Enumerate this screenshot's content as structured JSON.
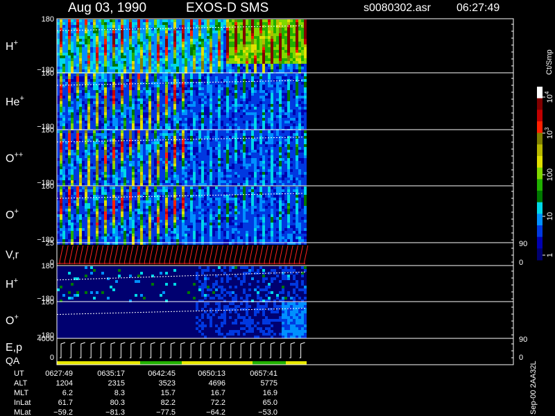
{
  "header": {
    "date": "Aug 03, 1990",
    "instrument": "EXOS-D SMS",
    "file": "s0080302.asr",
    "time": "06:27:49"
  },
  "panels": [
    {
      "label": "H",
      "sup": "+",
      "top": "180",
      "bottom": "−180"
    },
    {
      "label": "He",
      "sup": "+",
      "top": "180",
      "bottom": "−180"
    },
    {
      "label": "O",
      "sup": "++",
      "top": "180",
      "bottom": "−180"
    },
    {
      "label": "O",
      "sup": "+",
      "top": "180",
      "bottom": "−180"
    },
    {
      "label": "V,r",
      "top": "25",
      "bottom": "0",
      "right_top": "90",
      "right_bottom": "0"
    },
    {
      "label": "H",
      "sup": "+",
      "top": "180",
      "bottom": "−180"
    },
    {
      "label": "O",
      "sup": "+",
      "top": "180",
      "bottom": "−180"
    },
    {
      "label": "E,p",
      "top": "4000",
      "bottom": "0",
      "right_top": "90",
      "right_bottom": "0"
    }
  ],
  "qa_label": "QA",
  "colorbar": {
    "title": "Ct/Smp",
    "labels": [
      {
        "text": "10",
        "sup": "4"
      },
      {
        "text": "10",
        "sup": "3"
      },
      {
        "text": "100"
      },
      {
        "text": "10"
      },
      {
        "text": "1"
      }
    ]
  },
  "table": {
    "rows": [
      [
        "UT",
        "0627:49",
        "0635:17",
        "0642:45",
        "0650:13",
        "0657:41"
      ],
      [
        "ALT",
        "1204",
        "2315",
        "3523",
        "4696",
        "5775"
      ],
      [
        "MLT",
        "6.2",
        "8.3",
        "15.7",
        "16.7",
        "16.9"
      ],
      [
        "InLat",
        "61.7",
        "80.3",
        "82.2",
        "72.2",
        "65.0"
      ],
      [
        "MLat",
        "−59.2",
        "−81.3",
        "−77.5",
        "−64.2",
        "−53.0"
      ]
    ]
  },
  "footer": "Sep-00 2AA32L"
}
